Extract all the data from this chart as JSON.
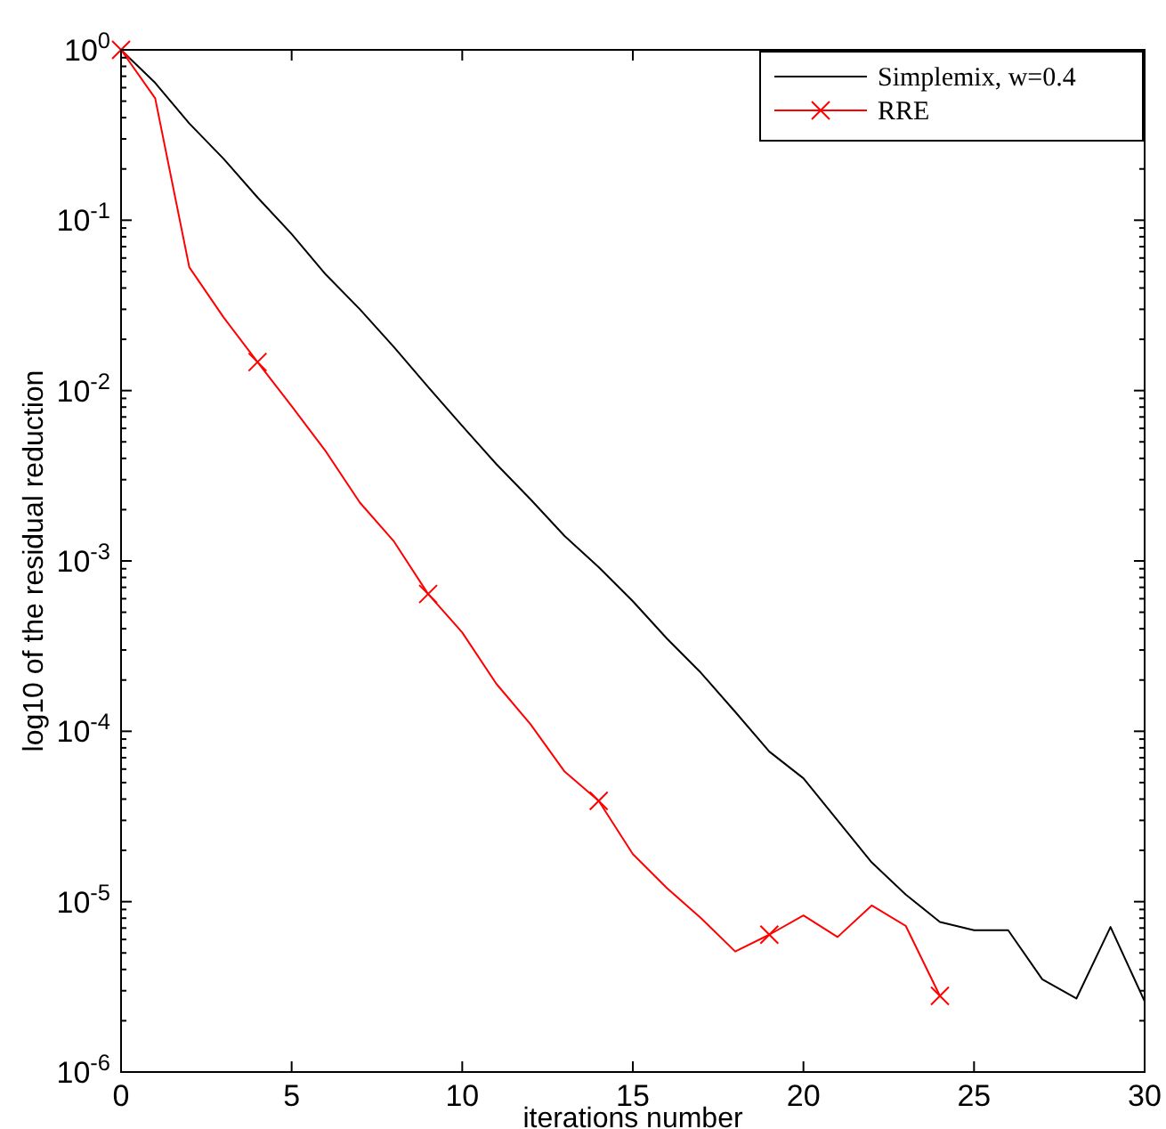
{
  "chart_data": {
    "type": "line",
    "xlabel": "iterations number",
    "ylabel": "log10 of the residual reduction",
    "xlim": [
      0,
      30
    ],
    "xticks": [
      0,
      5,
      10,
      15,
      20,
      25,
      30
    ],
    "ylim": [
      1e-06,
      1
    ],
    "yticks": [
      {
        "value": 1e-06,
        "label": "10$^{-6}$"
      },
      {
        "value": 1e-05,
        "label": "10$^{-5}$"
      },
      {
        "value": 0.0001,
        "label": "10$^{-4}$"
      },
      {
        "value": 0.001,
        "label": "10$^{-3}$"
      },
      {
        "value": 0.01,
        "label": "10$^{-2}$"
      },
      {
        "value": 0.1,
        "label": "10$^{-1}$"
      },
      {
        "value": 1,
        "label": "10$^{0}$"
      }
    ],
    "log": "y",
    "grid": false,
    "legend": "top right",
    "series": [
      {
        "name": "Simplemix, w=0.4",
        "color": "#000000",
        "marker": "none",
        "x": [
          0,
          1,
          2,
          3,
          4,
          5,
          6,
          7,
          8,
          9,
          10,
          11,
          12,
          13,
          14,
          15,
          16,
          17,
          18,
          19,
          20,
          21,
          22,
          23,
          24,
          25,
          26,
          27,
          28,
          29,
          30
        ],
        "values": [
          1,
          0.64,
          0.37,
          0.23,
          0.136,
          0.083,
          0.048,
          0.03,
          0.018,
          0.0105,
          0.0062,
          0.0037,
          0.0023,
          0.0014,
          0.00092,
          0.00058,
          0.00035,
          0.00022,
          0.00013,
          7.6e-05,
          5.3e-05,
          3e-05,
          1.7e-05,
          1.1e-05,
          7.6e-06,
          6.8e-06,
          6.8e-06,
          3.5e-06,
          2.7e-06,
          7.1e-06,
          2.6e-06
        ]
      },
      {
        "name": "RRE",
        "color": "#ff0000",
        "marker": "none",
        "x": [
          0,
          1,
          2,
          3,
          4,
          5,
          6,
          7,
          8,
          9,
          10,
          11,
          12,
          13,
          14,
          15,
          16,
          17,
          18,
          19,
          20,
          21,
          22,
          23,
          24
        ],
        "values": [
          1,
          0.52,
          0.053,
          0.027,
          0.0147,
          0.0081,
          0.0044,
          0.0022,
          0.0013,
          0.00064,
          0.00038,
          0.00019,
          0.00011,
          5.8e-05,
          3.9e-05,
          1.9e-05,
          1.2e-05,
          8e-06,
          5.1e-06,
          6.4e-06,
          8.3e-06,
          6.2e-06,
          9.5e-06,
          7.2e-06,
          2.8e-06
        ]
      },
      {
        "type": "scatter",
        "color": "#ff0000",
        "marker": "cross",
        "x": [
          0,
          4,
          9,
          14,
          19,
          24
        ],
        "values": [
          1,
          0.0147,
          0.00064,
          3.9e-05,
          6.4e-06,
          2.8e-06
        ]
      }
    ]
  }
}
